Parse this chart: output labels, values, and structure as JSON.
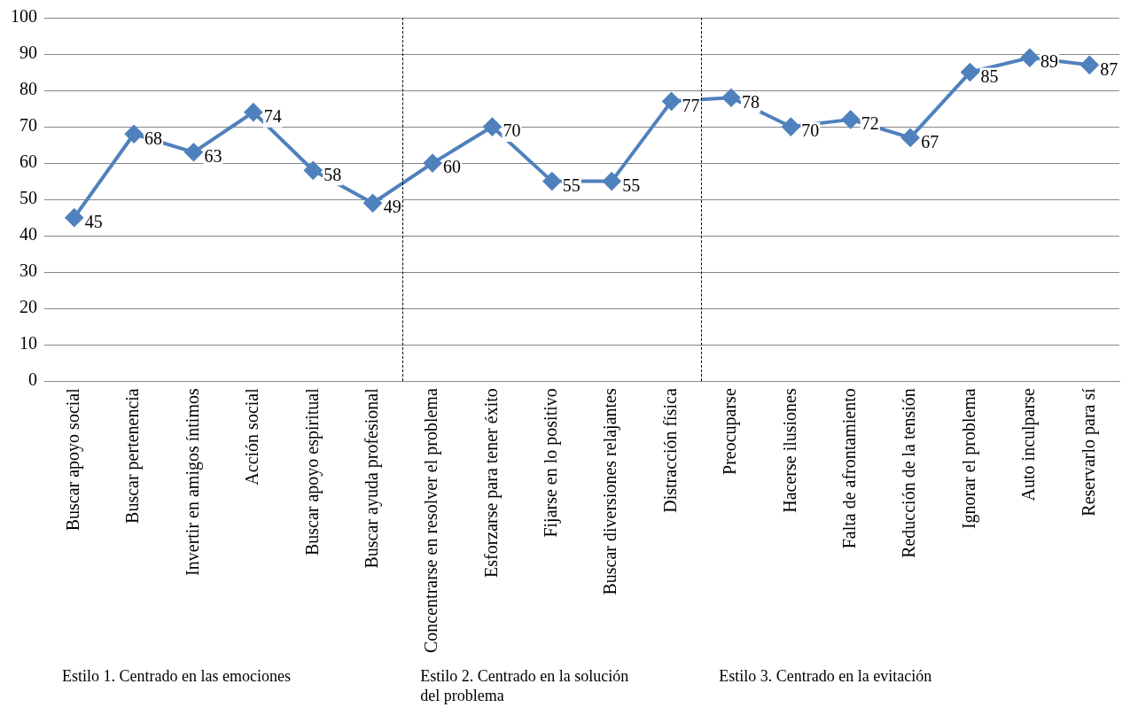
{
  "chart_data": {
    "type": "line",
    "categories": [
      "Buscar apoyo social",
      "Buscar pertenencia",
      "Invertir en amigos íntimos",
      "Acción social",
      "Buscar apoyo espiritual",
      "Buscar ayuda profesional",
      "Concentrarse en resolver el problema",
      "Esforzarse para tener éxito",
      "Fijarse en lo positivo",
      "Buscar diversiones relajantes",
      "Distracción física",
      "Preocuparse",
      "Hacerse ilusiones",
      "Falta de afrontamiento",
      "Reducción de la tensión",
      "Ignorar el problema",
      "Auto inculparse",
      "Reservarlo para sí"
    ],
    "series": [
      {
        "color": "#4f81bd",
        "values": [
          45,
          68,
          63,
          74,
          58,
          49,
          60,
          70,
          55,
          55,
          77,
          78,
          70,
          72,
          67,
          85,
          89,
          87
        ]
      }
    ],
    "ylim": [
      0,
      100
    ],
    "yticks": [
      0,
      10,
      20,
      30,
      40,
      50,
      60,
      70,
      80,
      90,
      100
    ],
    "grid": "y",
    "legend": false,
    "marker": "diamond",
    "line_style": "solid",
    "data_labels": true,
    "annotations": [
      "Estilo 1. Centrado en las emociones",
      "Estilo 2. Centrado en la solución del problema",
      "Estilo 3. Centrado en la evitación"
    ]
  }
}
